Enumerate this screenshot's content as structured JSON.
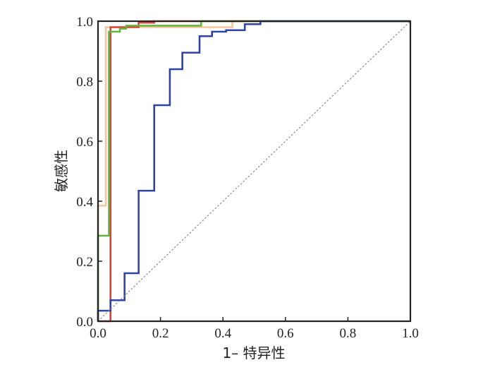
{
  "chart_data": {
    "type": "line",
    "xlabel": "1– 特异性",
    "ylabel": "敏感性",
    "xlim": [
      0,
      1
    ],
    "ylim": [
      0,
      1
    ],
    "x_ticks": [
      "0.0",
      "0.2",
      "0.4",
      "0.6",
      "0.8",
      "1.0"
    ],
    "y_ticks": [
      "0.0",
      "0.2",
      "0.4",
      "0.6",
      "0.8",
      "1.0"
    ],
    "grid": false,
    "legend": "none",
    "series": [
      {
        "color": "#f5c49a",
        "style": "step",
        "points": [
          [
            0,
            0
          ],
          [
            0,
            0.385
          ],
          [
            0.025,
            0.385
          ],
          [
            0.025,
            0.98
          ],
          [
            0.43,
            0.98
          ],
          [
            0.43,
            1
          ],
          [
            1,
            1
          ]
        ]
      },
      {
        "color": "#d9443a",
        "style": "step",
        "points": [
          [
            0,
            0
          ],
          [
            0.04,
            0
          ],
          [
            0.04,
            0.98
          ],
          [
            0.13,
            0.98
          ],
          [
            0.13,
            0.995
          ],
          [
            0.18,
            0.995
          ],
          [
            0.18,
            1
          ],
          [
            1,
            1
          ]
        ]
      },
      {
        "color": "#5db83b",
        "style": "step",
        "points": [
          [
            0,
            0
          ],
          [
            0,
            0.285
          ],
          [
            0.035,
            0.285
          ],
          [
            0.035,
            0.965
          ],
          [
            0.07,
            0.965
          ],
          [
            0.07,
            0.975
          ],
          [
            0.09,
            0.975
          ],
          [
            0.09,
            0.985
          ],
          [
            0.33,
            0.985
          ],
          [
            0.33,
            1
          ],
          [
            1,
            1
          ]
        ]
      },
      {
        "color": "#2e43a8",
        "style": "step",
        "points": [
          [
            0,
            0
          ],
          [
            0,
            0.035
          ],
          [
            0.04,
            0.035
          ],
          [
            0.04,
            0.07
          ],
          [
            0.085,
            0.07
          ],
          [
            0.085,
            0.16
          ],
          [
            0.13,
            0.16
          ],
          [
            0.13,
            0.435
          ],
          [
            0.18,
            0.435
          ],
          [
            0.18,
            0.72
          ],
          [
            0.23,
            0.72
          ],
          [
            0.23,
            0.84
          ],
          [
            0.27,
            0.84
          ],
          [
            0.27,
            0.895
          ],
          [
            0.325,
            0.895
          ],
          [
            0.325,
            0.95
          ],
          [
            0.365,
            0.95
          ],
          [
            0.365,
            0.965
          ],
          [
            0.41,
            0.965
          ],
          [
            0.41,
            0.97
          ],
          [
            0.47,
            0.97
          ],
          [
            0.47,
            0.99
          ],
          [
            0.52,
            0.99
          ],
          [
            0.52,
            1
          ],
          [
            1,
            1
          ]
        ]
      },
      {
        "color": "#888888",
        "style": "dotted-diagonal",
        "points": [
          [
            0,
            0
          ],
          [
            1,
            1
          ]
        ]
      }
    ]
  }
}
